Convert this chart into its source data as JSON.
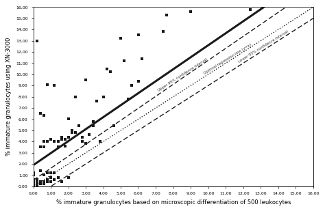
{
  "title": "",
  "xlabel": "% immature granulocytes based on microscopic differentiation of 500 leukocytes",
  "ylabel": "% immature granulocytes using XN-3000",
  "xlim": [
    0,
    16
  ],
  "ylim": [
    0,
    16
  ],
  "scatter_x": [
    0.0,
    0.0,
    0.0,
    0.0,
    0.0,
    0.0,
    0.0,
    0.0,
    0.2,
    0.2,
    0.2,
    0.2,
    0.2,
    0.4,
    0.4,
    0.4,
    0.4,
    0.4,
    0.6,
    0.6,
    0.6,
    0.6,
    0.6,
    0.6,
    0.8,
    0.8,
    0.8,
    0.8,
    0.8,
    1.0,
    1.0,
    1.0,
    1.0,
    1.0,
    1.2,
    1.2,
    1.2,
    1.2,
    1.4,
    1.4,
    1.4,
    1.6,
    1.6,
    1.6,
    1.8,
    1.8,
    2.0,
    2.0,
    2.0,
    2.2,
    2.2,
    2.4,
    2.4,
    2.6,
    2.8,
    2.8,
    3.0,
    3.0,
    3.2,
    3.4,
    3.4,
    3.6,
    3.8,
    4.0,
    4.2,
    4.4,
    4.6,
    5.0,
    5.2,
    5.4,
    5.6,
    6.0,
    6.0,
    6.2,
    7.4,
    7.6,
    9.0,
    12.4
  ],
  "scatter_y": [
    0.0,
    0.0,
    0.0,
    0.2,
    0.4,
    0.6,
    1.0,
    1.2,
    0.0,
    0.2,
    0.4,
    0.6,
    13.0,
    0.2,
    0.4,
    1.4,
    3.5,
    6.5,
    0.2,
    0.4,
    1.0,
    3.5,
    4.0,
    6.3,
    0.4,
    0.6,
    1.2,
    4.0,
    9.1,
    0.4,
    0.8,
    1.2,
    4.2,
    4.2,
    0.6,
    1.2,
    4.0,
    9.0,
    0.8,
    3.5,
    4.0,
    0.4,
    4.2,
    4.4,
    3.6,
    4.2,
    0.8,
    4.4,
    6.0,
    4.8,
    5.0,
    4.8,
    8.0,
    5.4,
    4.0,
    4.4,
    3.8,
    9.5,
    4.6,
    5.4,
    5.8,
    7.6,
    4.0,
    8.0,
    10.5,
    10.2,
    5.4,
    13.2,
    11.2,
    7.8,
    9.0,
    9.4,
    13.5,
    11.4,
    13.8,
    15.3,
    15.6,
    15.8
  ],
  "solid_slope": 1.07,
  "solid_intercept": 1.9,
  "upper_dashed_slope": 1.07,
  "upper_dashed_intercept": 0.55,
  "dotted_slope": 1.0,
  "dotted_intercept": 0.0,
  "lower_dashed_slope": 1.0,
  "lower_dashed_intercept": -1.0,
  "scatter_color": "#1a1a1a",
  "scatter_size": 6,
  "line_color": "#1a1a1a",
  "annotation_upper_ci": "Upper 95% confidence interval",
  "annotation_optimal": "Optimal regression line (y=x)",
  "annotation_lower_ci": "Lower 95% confidence interval",
  "tick_labels": [
    "0,00",
    "1,00",
    "2,00",
    "3,00",
    "4,00",
    "5,00",
    "6,00",
    "7,00",
    "8,00",
    "9,00",
    "10,00",
    "11,00",
    "12,00",
    "13,00",
    "14,00",
    "15,00",
    "16,00"
  ]
}
